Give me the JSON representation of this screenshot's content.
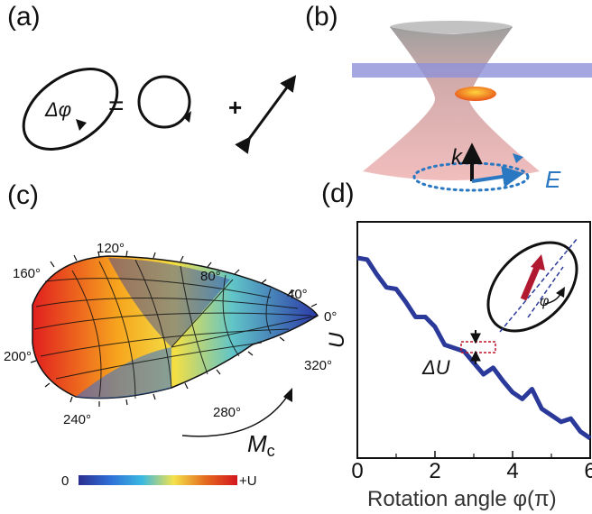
{
  "panels": {
    "a": {
      "label": "(a)",
      "delta_phi": "Δφ",
      "equals": "=",
      "plus": "+"
    },
    "b": {
      "label": "(b)",
      "k_label": "k",
      "e_label": "E",
      "colors": {
        "beam": "#e8a0a0",
        "slab": "#8f91d8",
        "particle": "#f07f1f",
        "e_arrow": "#2a78c2"
      }
    },
    "c": {
      "label": "(c)",
      "angle_labels": [
        "120°",
        "160°",
        "80°",
        "40°",
        "0°",
        "200°",
        "320°",
        "240°",
        "280°"
      ],
      "mc_label_main": "M",
      "mc_label_sub": "c",
      "colorbar": {
        "min_label": "0",
        "max_label": "+U",
        "colors": [
          "#2b2f8f",
          "#2f6fd8",
          "#3ab9e0",
          "#f4e24a",
          "#e46a1e",
          "#d3161d"
        ]
      }
    },
    "d": {
      "label": "(d)",
      "ylabel": "U",
      "delta_u": "ΔU",
      "phi_symbol": "φ",
      "colors": {
        "line": "#2b3a9a",
        "arrow": "#b0192f",
        "marker": "#c0162a"
      }
    }
  },
  "chart_data": {
    "type": "line",
    "title": "",
    "xlabel": "Rotation angle φ(π)",
    "ylabel": "U",
    "xlim": [
      0,
      6
    ],
    "xticks": [
      "0",
      "2",
      "4",
      "6"
    ],
    "yticks": [],
    "grid": false,
    "series": [
      {
        "name": "",
        "x": [
          0,
          0.25,
          0.5,
          0.75,
          1.0,
          1.25,
          1.5,
          1.75,
          2.0,
          2.25,
          2.5,
          2.75,
          3.0,
          3.25,
          3.5,
          3.75,
          4.0,
          4.25,
          4.5,
          4.75,
          5.0,
          5.25,
          5.5,
          5.75,
          6.0
        ],
        "y": [
          1.0,
          0.99,
          0.9,
          0.82,
          0.81,
          0.73,
          0.64,
          0.64,
          0.58,
          0.47,
          0.45,
          0.43,
          0.36,
          0.29,
          0.33,
          0.25,
          0.18,
          0.14,
          0.2,
          0.08,
          0.04,
          0.0,
          0.02,
          -0.06,
          -0.1
        ]
      }
    ]
  }
}
